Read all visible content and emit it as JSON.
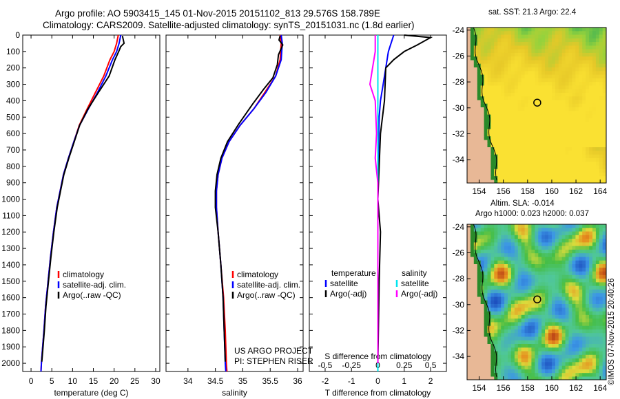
{
  "title_line1": "Argo profile: AO 5903415_145 01-Nov-2015 20151102_813 29.576S 158.789E",
  "title_line2": "Climatology: CARS2009. Satellite-adjusted climatology: synTS_20151031.nc (1.8d earlier)",
  "credit_line1": "US ARGO PROJECT",
  "credit_line2": "PI: STEPHEN RISER",
  "copyright": "©IMOS 07-Nov-2015 20:40:26",
  "colors": {
    "climatology": "#ff0000",
    "satellite": "#0000ff",
    "argo": "#000000",
    "sat_diff_s": "#00e5ee",
    "argo_diff_s": "#ff00ff"
  },
  "chart_data": [
    {
      "type": "line",
      "xlabel": "temperature (deg C)",
      "ylabel": "",
      "xlim": [
        -2,
        31
      ],
      "ylim": [
        2050,
        0
      ],
      "xticks": [
        0,
        5,
        10,
        15,
        20,
        25,
        30
      ],
      "yticks": [
        0,
        100,
        200,
        300,
        400,
        500,
        600,
        700,
        800,
        900,
        1000,
        1100,
        1200,
        1300,
        1400,
        1500,
        1600,
        1700,
        1800,
        1900,
        2000
      ],
      "legend": [
        "climatology",
        "satellite-adj. clim.",
        "Argo(..raw -QC)"
      ],
      "legend_position": "lower-center",
      "series": [
        {
          "name": "climatology",
          "color": "#ff0000",
          "points": [
            [
              21,
              0
            ],
            [
              20.6,
              50
            ],
            [
              20,
              100
            ],
            [
              19,
              150
            ],
            [
              17.5,
              250
            ],
            [
              15.5,
              350
            ],
            [
              13.5,
              450
            ],
            [
              11.6,
              550
            ],
            [
              10.3,
              650
            ],
            [
              9,
              750
            ],
            [
              7.8,
              850
            ],
            [
              7,
              950
            ],
            [
              6.2,
              1050
            ],
            [
              5.4,
              1200
            ],
            [
              4.7,
              1350
            ],
            [
              4.1,
              1500
            ],
            [
              3.5,
              1650
            ],
            [
              3.1,
              1800
            ],
            [
              2.8,
              1900
            ],
            [
              2.5,
              2000
            ],
            [
              2.4,
              2050
            ]
          ]
        },
        {
          "name": "satellite-adj. clim.",
          "color": "#0000ff",
          "points": [
            [
              21.6,
              0
            ],
            [
              21.2,
              50
            ],
            [
              20.6,
              100
            ],
            [
              19.6,
              150
            ],
            [
              18,
              250
            ],
            [
              16,
              350
            ],
            [
              13.8,
              450
            ],
            [
              11.7,
              550
            ],
            [
              10.3,
              650
            ],
            [
              9,
              750
            ],
            [
              7.8,
              850
            ],
            [
              7,
              950
            ],
            [
              6.2,
              1050
            ],
            [
              5.4,
              1200
            ],
            [
              4.7,
              1350
            ],
            [
              4.1,
              1500
            ],
            [
              3.5,
              1650
            ],
            [
              3.1,
              1800
            ],
            [
              2.8,
              1900
            ],
            [
              2.5,
              2000
            ],
            [
              2.4,
              2050
            ]
          ]
        },
        {
          "name": "Argo(..raw -QC)",
          "color": "#000000",
          "points": [
            [
              22,
              5
            ],
            [
              22.4,
              50
            ],
            [
              21.6,
              70
            ],
            [
              21.1,
              100
            ],
            [
              20.2,
              150
            ],
            [
              18.8,
              250
            ],
            [
              16.2,
              350
            ],
            [
              13.7,
              450
            ],
            [
              11.7,
              550
            ],
            [
              10.4,
              650
            ],
            [
              9.1,
              750
            ],
            [
              7.9,
              850
            ],
            [
              7.1,
              950
            ],
            [
              6.3,
              1050
            ],
            [
              5.5,
              1200
            ],
            [
              4.8,
              1350
            ],
            [
              4.2,
              1500
            ],
            [
              3.6,
              1650
            ],
            [
              3.2,
              1800
            ],
            [
              2.9,
              1900
            ],
            [
              2.6,
              1990
            ]
          ]
        }
      ]
    },
    {
      "type": "line",
      "xlabel": "salinity",
      "ylabel": "",
      "xlim": [
        33.6,
        36.1
      ],
      "ylim": [
        2050,
        0
      ],
      "xticks": [
        34,
        34.5,
        35,
        35.5,
        36
      ],
      "legend": [
        "climatology",
        "satellite-adj. clim.",
        "Argo(..raw -QC)"
      ],
      "legend_position": "lower-center",
      "series": [
        {
          "name": "climatology",
          "color": "#ff0000",
          "points": [
            [
              35.68,
              0
            ],
            [
              35.7,
              50
            ],
            [
              35.68,
              150
            ],
            [
              35.6,
              250
            ],
            [
              35.4,
              350
            ],
            [
              35.2,
              450
            ],
            [
              34.95,
              550
            ],
            [
              34.75,
              650
            ],
            [
              34.62,
              750
            ],
            [
              34.55,
              850
            ],
            [
              34.52,
              950
            ],
            [
              34.52,
              1050
            ],
            [
              34.55,
              1200
            ],
            [
              34.6,
              1400
            ],
            [
              34.65,
              1600
            ],
            [
              34.68,
              1800
            ],
            [
              34.7,
              2000
            ],
            [
              34.71,
              2050
            ]
          ]
        },
        {
          "name": "satellite-adj. clim.",
          "color": "#0000ff",
          "points": [
            [
              35.7,
              0
            ],
            [
              35.72,
              50
            ],
            [
              35.7,
              150
            ],
            [
              35.6,
              250
            ],
            [
              35.42,
              350
            ],
            [
              35.2,
              450
            ],
            [
              34.95,
              550
            ],
            [
              34.75,
              650
            ],
            [
              34.62,
              750
            ],
            [
              34.55,
              850
            ],
            [
              34.52,
              950
            ],
            [
              34.52,
              1050
            ],
            [
              34.55,
              1200
            ],
            [
              34.6,
              1400
            ],
            [
              34.64,
              1600
            ],
            [
              34.66,
              1800
            ],
            [
              34.68,
              2000
            ],
            [
              34.69,
              2050
            ]
          ]
        },
        {
          "name": "Argo(..raw -QC)",
          "color": "#000000",
          "points": [
            [
              35.68,
              5
            ],
            [
              35.66,
              30
            ],
            [
              35.73,
              60
            ],
            [
              35.65,
              120
            ],
            [
              35.63,
              180
            ],
            [
              35.55,
              260
            ],
            [
              35.38,
              330
            ],
            [
              35.18,
              420
            ],
            [
              34.93,
              540
            ],
            [
              34.72,
              650
            ],
            [
              34.6,
              750
            ],
            [
              34.53,
              850
            ],
            [
              34.5,
              950
            ],
            [
              34.5,
              1050
            ],
            [
              34.55,
              1200
            ],
            [
              34.6,
              1400
            ],
            [
              34.64,
              1600
            ],
            [
              34.66,
              1800
            ],
            [
              34.68,
              1990
            ]
          ]
        }
      ]
    },
    {
      "type": "line",
      "xlabel": "T difference from climatology",
      "xlabel_top": "S difference from climatology",
      "xlim": [
        -2.6,
        2.6
      ],
      "ylim": [
        2050,
        0
      ],
      "xticks": [
        -2,
        -1,
        0,
        1,
        2
      ],
      "xticks_top": [
        "-0.5",
        "-0.25",
        "0",
        "0.25",
        "0.5"
      ],
      "legend_left_title": "temperature",
      "legend_right_title": "salinity",
      "legend": [
        "satellite",
        "Argo(-adj)",
        "satellite",
        "Argo(-adj)"
      ],
      "legend_position": "lower-center",
      "series": [
        {
          "name": "satellite",
          "group": "temperature",
          "color": "#0000ff",
          "points": [
            [
              0.6,
              0
            ],
            [
              0.4,
              100
            ],
            [
              0.3,
              200
            ],
            [
              0.2,
              300
            ],
            [
              0.1,
              400
            ],
            [
              0.05,
              500
            ],
            [
              0.02,
              700
            ],
            [
              0,
              900
            ],
            [
              0,
              2050
            ]
          ]
        },
        {
          "name": "Argo(-adj)",
          "group": "temperature",
          "color": "#000000",
          "points": [
            [
              1,
              0
            ],
            [
              2,
              15
            ],
            [
              1.5,
              60
            ],
            [
              1,
              100
            ],
            [
              0.6,
              150
            ],
            [
              0.3,
              200
            ],
            [
              0.25,
              400
            ],
            [
              0.1,
              600
            ],
            [
              0.05,
              800
            ],
            [
              0,
              1000
            ],
            [
              0.1,
              1200
            ],
            [
              0.05,
              1500
            ],
            [
              0,
              2000
            ]
          ]
        },
        {
          "name": "satellite",
          "group": "salinity",
          "color": "#00e5ee",
          "points": [
            [
              0,
              0
            ],
            [
              0,
              500
            ],
            [
              0,
              2050
            ]
          ]
        },
        {
          "name": "Argo(-adj)",
          "group": "salinity",
          "color": "#ff00ff",
          "points": [
            [
              -0.1,
              0
            ],
            [
              -0.1,
              100
            ],
            [
              -0.2,
              200
            ],
            [
              -0.3,
              300
            ],
            [
              -0.1,
              400
            ],
            [
              -0.05,
              600
            ],
            [
              -0.1,
              750
            ],
            [
              0,
              900
            ],
            [
              0,
              2000
            ]
          ]
        }
      ]
    },
    {
      "type": "heatmap",
      "title": "sat. SST: 21.3 Argo: 22.4",
      "xlim": [
        153,
        164.5
      ],
      "ylim": [
        -35.8,
        -23.8
      ],
      "xticks": [
        154,
        156,
        158,
        160,
        162,
        164
      ],
      "yticks": [
        -24,
        -26,
        -28,
        -30,
        -32,
        -34
      ],
      "marker": {
        "lon": 158.8,
        "lat": -29.6
      }
    },
    {
      "type": "heatmap",
      "title": "Altim. SLA: -0.014",
      "subtitle": "Argo h1000: 0.023 h2000: 0.037",
      "xlim": [
        153,
        164.5
      ],
      "ylim": [
        -35.8,
        -23.8
      ],
      "xticks": [
        154,
        156,
        158,
        160,
        162,
        164
      ],
      "yticks": [
        -24,
        -26,
        -28,
        -30,
        -32,
        -34
      ],
      "marker": {
        "lon": 158.8,
        "lat": -29.6
      }
    }
  ]
}
